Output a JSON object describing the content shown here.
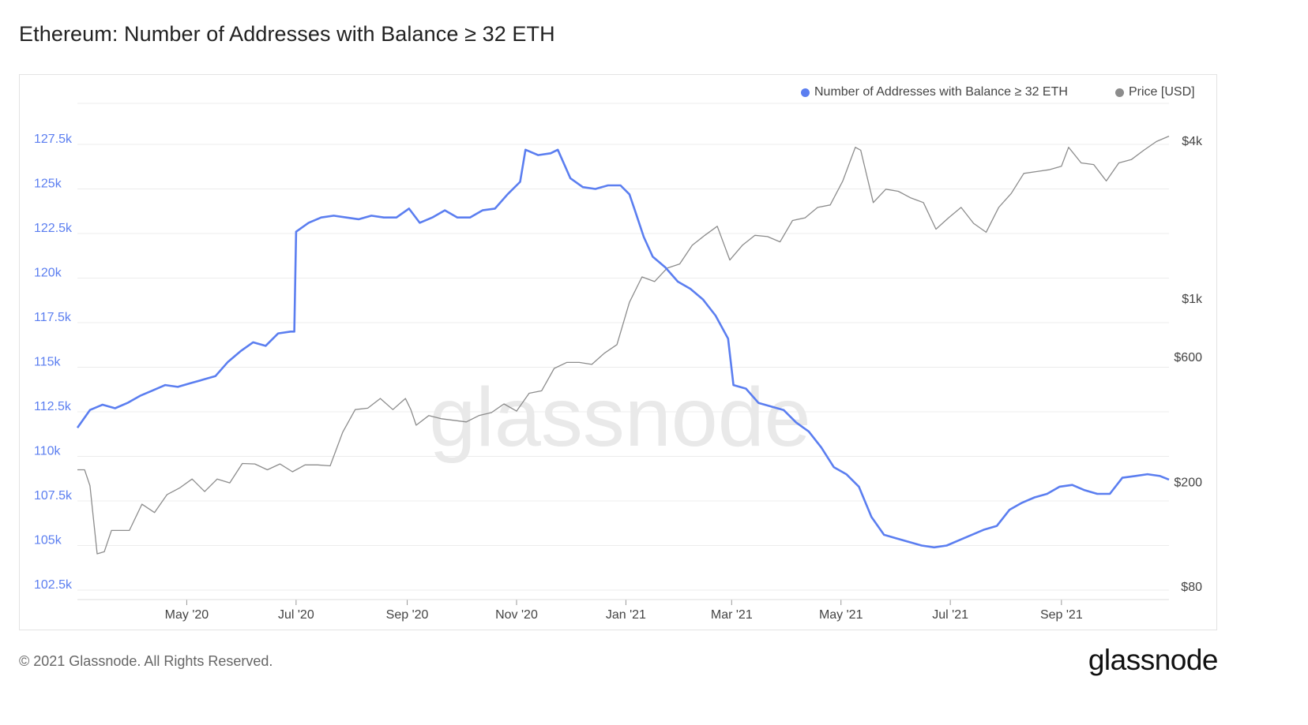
{
  "title": "Ethereum: Number of Addresses with Balance ≥ 32 ETH",
  "footer": {
    "copyright": "© 2021 Glassnode. All Rights Reserved.",
    "logo_text": "glassnode"
  },
  "watermark": "glassnode",
  "colors": {
    "addresses": "#5b7ef0",
    "price": "#8c8c8c",
    "left_axis_text": "#5b7ef0",
    "right_axis_text": "#444444",
    "grid": "#ececec"
  },
  "chart_data": {
    "type": "line",
    "title": "Ethereum: Number of Addresses with Balance ≥ 32 ETH",
    "x_ticks": [
      "May '20",
      "Jul '20",
      "Sep '20",
      "Nov '20",
      "Jan '21",
      "Mar '21",
      "May '21",
      "Jul '21",
      "Sep '21"
    ],
    "x_tick_dates": [
      "2020-05-01",
      "2020-07-01",
      "2020-09-01",
      "2020-11-01",
      "2021-01-01",
      "2021-03-01",
      "2021-05-01",
      "2021-07-01",
      "2021-09-01"
    ],
    "x_range": [
      "2020-03-01",
      "2021-10-31"
    ],
    "left_axis": {
      "ticks": [
        "102.5k",
        "105k",
        "107.5k",
        "110k",
        "112.5k",
        "115k",
        "117.5k",
        "120k",
        "122.5k",
        "125k",
        "127.5k"
      ],
      "tick_values": [
        102500,
        105000,
        107500,
        110000,
        112500,
        115000,
        117500,
        120000,
        122500,
        125000,
        127500
      ],
      "range": [
        102500,
        127500
      ]
    },
    "right_axis": {
      "scale": "log",
      "ticks": [
        "$80",
        "$200",
        "$600",
        "$1k",
        "$4k"
      ],
      "tick_values": [
        80,
        200,
        600,
        1000,
        4000
      ]
    },
    "legend_position": "top-right",
    "grid": true,
    "series": [
      {
        "name": "Number of Addresses with Balance ≥ 32 ETH",
        "axis": "left",
        "color": "#5b7ef0",
        "points": [
          [
            "2020-03-01",
            111600
          ],
          [
            "2020-03-08",
            112600
          ],
          [
            "2020-03-15",
            112900
          ],
          [
            "2020-03-22",
            112700
          ],
          [
            "2020-03-29",
            113000
          ],
          [
            "2020-04-05",
            113400
          ],
          [
            "2020-04-12",
            113700
          ],
          [
            "2020-04-19",
            114000
          ],
          [
            "2020-04-26",
            113900
          ],
          [
            "2020-05-03",
            114100
          ],
          [
            "2020-05-10",
            114300
          ],
          [
            "2020-05-17",
            114500
          ],
          [
            "2020-05-24",
            115300
          ],
          [
            "2020-05-31",
            115900
          ],
          [
            "2020-06-07",
            116400
          ],
          [
            "2020-06-14",
            116200
          ],
          [
            "2020-06-21",
            116900
          ],
          [
            "2020-06-28",
            117000
          ],
          [
            "2020-06-30",
            117000
          ],
          [
            "2020-07-01",
            122600
          ],
          [
            "2020-07-08",
            123100
          ],
          [
            "2020-07-15",
            123400
          ],
          [
            "2020-07-22",
            123500
          ],
          [
            "2020-07-29",
            123400
          ],
          [
            "2020-08-05",
            123300
          ],
          [
            "2020-08-12",
            123500
          ],
          [
            "2020-08-19",
            123400
          ],
          [
            "2020-08-26",
            123400
          ],
          [
            "2020-09-02",
            123900
          ],
          [
            "2020-09-08",
            123100
          ],
          [
            "2020-09-15",
            123400
          ],
          [
            "2020-09-22",
            123800
          ],
          [
            "2020-09-29",
            123400
          ],
          [
            "2020-10-06",
            123400
          ],
          [
            "2020-10-13",
            123800
          ],
          [
            "2020-10-20",
            123900
          ],
          [
            "2020-10-27",
            124700
          ],
          [
            "2020-11-03",
            125400
          ],
          [
            "2020-11-06",
            127200
          ],
          [
            "2020-11-13",
            126900
          ],
          [
            "2020-11-20",
            127000
          ],
          [
            "2020-11-24",
            127200
          ],
          [
            "2020-12-01",
            125600
          ],
          [
            "2020-12-08",
            125100
          ],
          [
            "2020-12-15",
            125000
          ],
          [
            "2020-12-22",
            125200
          ],
          [
            "2020-12-29",
            125200
          ],
          [
            "2021-01-03",
            124700
          ],
          [
            "2021-01-06",
            123800
          ],
          [
            "2021-01-11",
            122300
          ],
          [
            "2021-01-16",
            121200
          ],
          [
            "2021-01-23",
            120600
          ],
          [
            "2021-01-30",
            119800
          ],
          [
            "2021-02-06",
            119400
          ],
          [
            "2021-02-13",
            118800
          ],
          [
            "2021-02-20",
            117900
          ],
          [
            "2021-02-27",
            116600
          ],
          [
            "2021-03-02",
            114000
          ],
          [
            "2021-03-09",
            113800
          ],
          [
            "2021-03-16",
            113000
          ],
          [
            "2021-03-23",
            112800
          ],
          [
            "2021-03-30",
            112600
          ],
          [
            "2021-04-06",
            111900
          ],
          [
            "2021-04-13",
            111400
          ],
          [
            "2021-04-20",
            110500
          ],
          [
            "2021-04-27",
            109400
          ],
          [
            "2021-05-04",
            109000
          ],
          [
            "2021-05-11",
            108300
          ],
          [
            "2021-05-18",
            106600
          ],
          [
            "2021-05-25",
            105600
          ],
          [
            "2021-06-01",
            105400
          ],
          [
            "2021-06-08",
            105200
          ],
          [
            "2021-06-15",
            105000
          ],
          [
            "2021-06-22",
            104900
          ],
          [
            "2021-06-29",
            105000
          ],
          [
            "2021-07-06",
            105300
          ],
          [
            "2021-07-13",
            105600
          ],
          [
            "2021-07-20",
            105900
          ],
          [
            "2021-07-27",
            106100
          ],
          [
            "2021-08-03",
            107000
          ],
          [
            "2021-08-10",
            107400
          ],
          [
            "2021-08-17",
            107700
          ],
          [
            "2021-08-24",
            107900
          ],
          [
            "2021-08-31",
            108300
          ],
          [
            "2021-09-07",
            108400
          ],
          [
            "2021-09-14",
            108100
          ],
          [
            "2021-09-21",
            107900
          ],
          [
            "2021-09-28",
            107900
          ],
          [
            "2021-10-05",
            108800
          ],
          [
            "2021-10-12",
            108900
          ],
          [
            "2021-10-19",
            109000
          ],
          [
            "2021-10-26",
            108900
          ],
          [
            "2021-10-31",
            108700
          ]
        ]
      },
      {
        "name": "Price [USD]",
        "axis": "right",
        "color": "#8c8c8c",
        "points": [
          [
            "2020-03-01",
            230
          ],
          [
            "2020-03-05",
            230
          ],
          [
            "2020-03-08",
            200
          ],
          [
            "2020-03-12",
            110
          ],
          [
            "2020-03-16",
            112
          ],
          [
            "2020-03-20",
            135
          ],
          [
            "2020-03-24",
            135
          ],
          [
            "2020-03-30",
            135
          ],
          [
            "2020-04-06",
            170
          ],
          [
            "2020-04-13",
            158
          ],
          [
            "2020-04-20",
            185
          ],
          [
            "2020-04-27",
            196
          ],
          [
            "2020-05-04",
            212
          ],
          [
            "2020-05-11",
            190
          ],
          [
            "2020-05-18",
            212
          ],
          [
            "2020-05-25",
            205
          ],
          [
            "2020-06-01",
            243
          ],
          [
            "2020-06-08",
            242
          ],
          [
            "2020-06-15",
            230
          ],
          [
            "2020-06-22",
            242
          ],
          [
            "2020-06-29",
            226
          ],
          [
            "2020-07-06",
            240
          ],
          [
            "2020-07-13",
            240
          ],
          [
            "2020-07-20",
            238
          ],
          [
            "2020-07-27",
            320
          ],
          [
            "2020-08-03",
            390
          ],
          [
            "2020-08-10",
            395
          ],
          [
            "2020-08-17",
            430
          ],
          [
            "2020-08-24",
            390
          ],
          [
            "2020-08-31",
            430
          ],
          [
            "2020-09-03",
            390
          ],
          [
            "2020-09-06",
            340
          ],
          [
            "2020-09-13",
            370
          ],
          [
            "2020-09-20",
            360
          ],
          [
            "2020-09-27",
            355
          ],
          [
            "2020-10-04",
            350
          ],
          [
            "2020-10-11",
            370
          ],
          [
            "2020-10-18",
            380
          ],
          [
            "2020-10-25",
            410
          ],
          [
            "2020-11-01",
            385
          ],
          [
            "2020-11-08",
            450
          ],
          [
            "2020-11-15",
            460
          ],
          [
            "2020-11-22",
            560
          ],
          [
            "2020-11-29",
            590
          ],
          [
            "2020-12-06",
            590
          ],
          [
            "2020-12-13",
            580
          ],
          [
            "2020-12-20",
            640
          ],
          [
            "2020-12-27",
            690
          ],
          [
            "2021-01-03",
            1000
          ],
          [
            "2021-01-10",
            1250
          ],
          [
            "2021-01-17",
            1200
          ],
          [
            "2021-01-24",
            1350
          ],
          [
            "2021-01-31",
            1400
          ],
          [
            "2021-02-07",
            1650
          ],
          [
            "2021-02-14",
            1800
          ],
          [
            "2021-02-21",
            1950
          ],
          [
            "2021-02-28",
            1450
          ],
          [
            "2021-03-07",
            1650
          ],
          [
            "2021-03-14",
            1800
          ],
          [
            "2021-03-21",
            1780
          ],
          [
            "2021-03-28",
            1700
          ],
          [
            "2021-04-04",
            2050
          ],
          [
            "2021-04-11",
            2100
          ],
          [
            "2021-04-18",
            2300
          ],
          [
            "2021-04-25",
            2350
          ],
          [
            "2021-05-02",
            2900
          ],
          [
            "2021-05-09",
            3900
          ],
          [
            "2021-05-12",
            3800
          ],
          [
            "2021-05-19",
            2400
          ],
          [
            "2021-05-26",
            2700
          ],
          [
            "2021-06-02",
            2650
          ],
          [
            "2021-06-09",
            2500
          ],
          [
            "2021-06-16",
            2400
          ],
          [
            "2021-06-23",
            1900
          ],
          [
            "2021-06-30",
            2100
          ],
          [
            "2021-07-07",
            2300
          ],
          [
            "2021-07-14",
            2000
          ],
          [
            "2021-07-21",
            1850
          ],
          [
            "2021-07-28",
            2300
          ],
          [
            "2021-08-04",
            2600
          ],
          [
            "2021-08-11",
            3100
          ],
          [
            "2021-08-18",
            3150
          ],
          [
            "2021-08-25",
            3200
          ],
          [
            "2021-09-01",
            3300
          ],
          [
            "2021-09-05",
            3900
          ],
          [
            "2021-09-12",
            3400
          ],
          [
            "2021-09-19",
            3350
          ],
          [
            "2021-09-26",
            2900
          ],
          [
            "2021-10-03",
            3400
          ],
          [
            "2021-10-10",
            3500
          ],
          [
            "2021-10-17",
            3800
          ],
          [
            "2021-10-24",
            4100
          ],
          [
            "2021-10-31",
            4300
          ]
        ]
      }
    ]
  }
}
